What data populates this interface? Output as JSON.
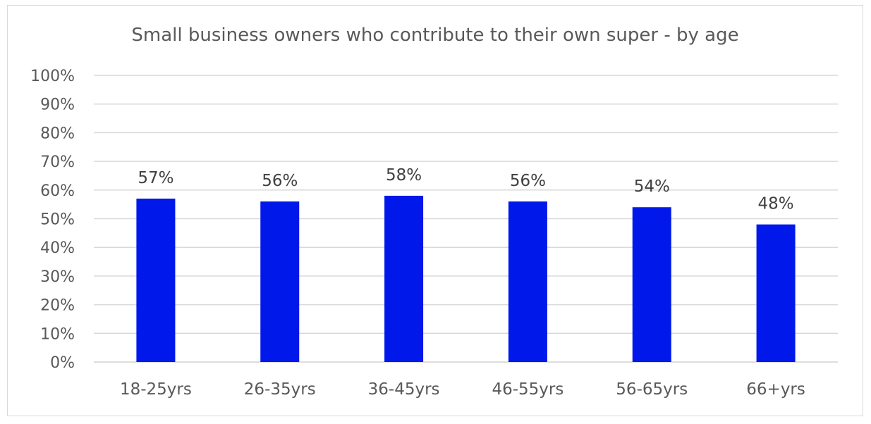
{
  "chart_data": {
    "type": "bar",
    "title": "Small business owners who contribute to their own super -  by age",
    "categories": [
      "18-25yrs",
      "26-35yrs",
      "36-45yrs",
      "46-55yrs",
      "56-65yrs",
      "66+yrs"
    ],
    "values": [
      57,
      56,
      58,
      56,
      54,
      48
    ],
    "data_labels": [
      "57%",
      "56%",
      "58%",
      "56%",
      "54%",
      "48%"
    ],
    "ylim": [
      0,
      100
    ],
    "yticks": [
      "0%",
      "10%",
      "20%",
      "30%",
      "40%",
      "50%",
      "60%",
      "70%",
      "80%",
      "90%",
      "100%"
    ],
    "xlabel": "",
    "ylabel": "",
    "grid": true,
    "legend": "none",
    "bar_color": "#0019ea"
  }
}
